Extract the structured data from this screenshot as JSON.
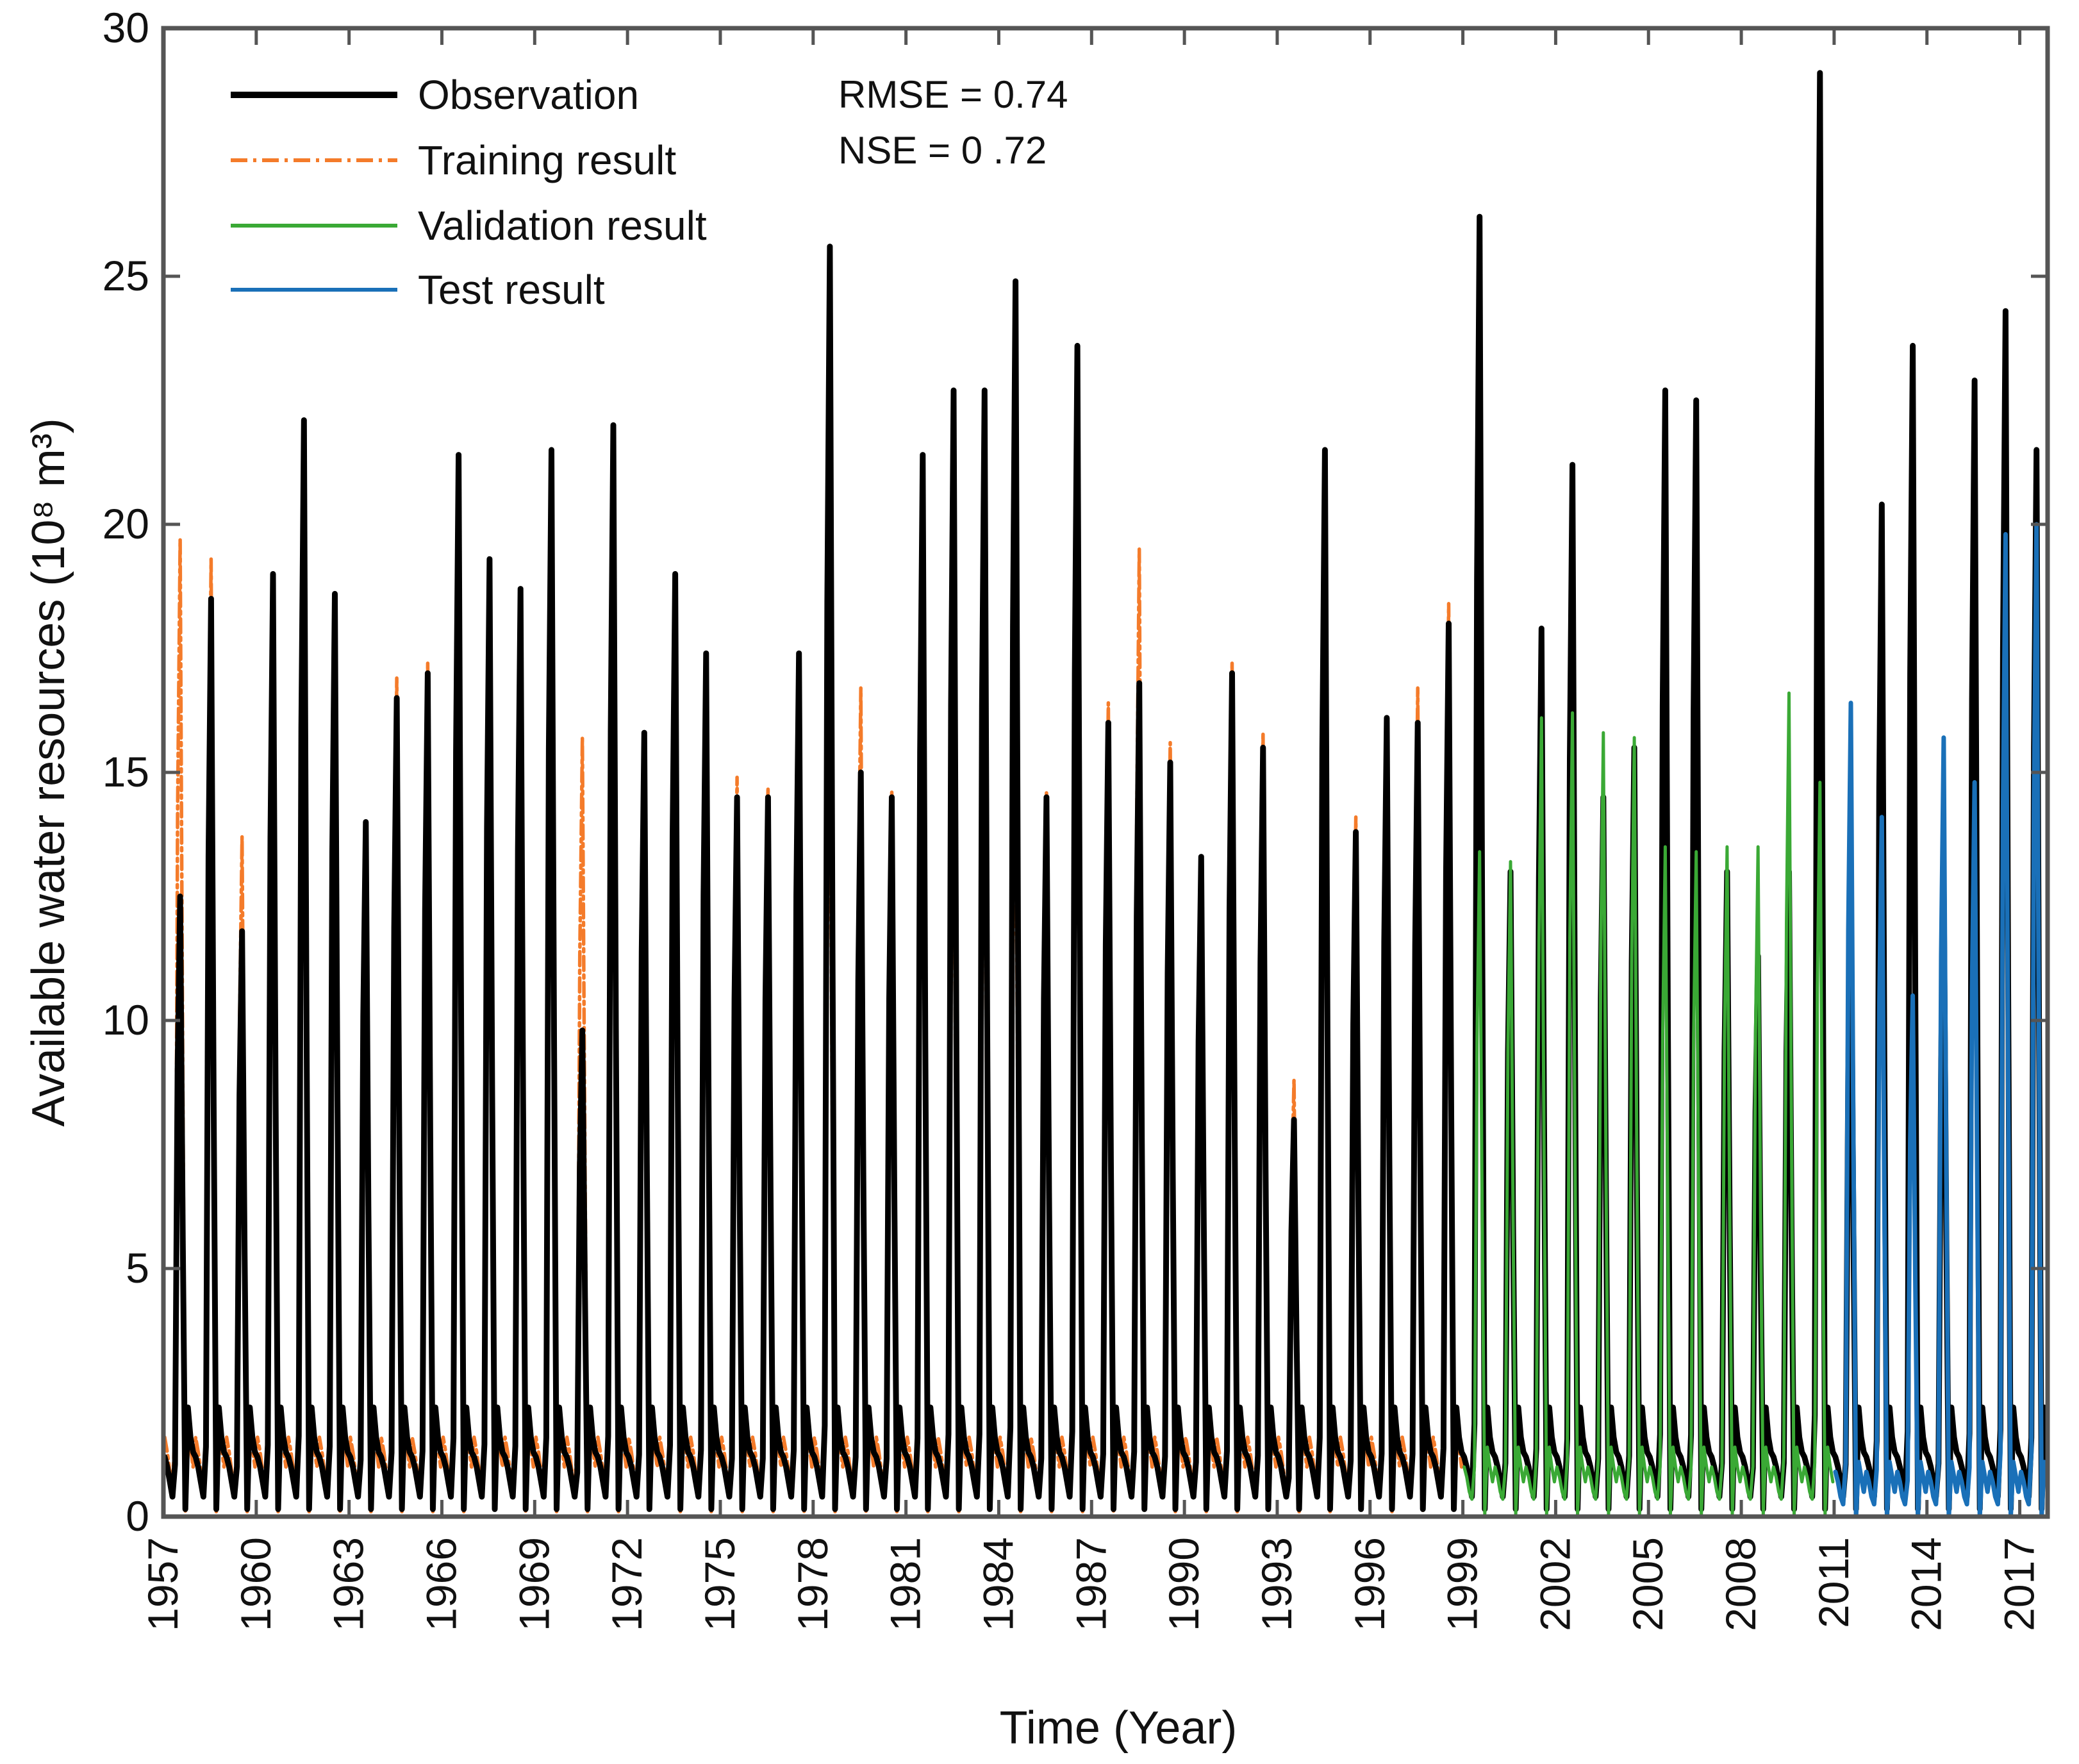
{
  "chart_data": {
    "type": "line",
    "title": "",
    "xlabel": "Time (Year)",
    "ylabel": "Available water resources (10⁸ m³)",
    "xlim": [
      1957,
      2017.9
    ],
    "ylim": [
      0,
      30
    ],
    "yticks": [
      0,
      5,
      10,
      15,
      20,
      25,
      30
    ],
    "xticks": [
      1957,
      1960,
      1963,
      1966,
      1969,
      1972,
      1975,
      1978,
      1981,
      1984,
      1987,
      1990,
      1993,
      1996,
      1999,
      2002,
      2005,
      2008,
      2011,
      2014,
      2017
    ],
    "grid": false,
    "legend_position": "top-left",
    "annotations": [
      "RMSE = 0.74",
      "NSE = 0 .72"
    ],
    "series": [
      {
        "name": "Observation",
        "color": "#000000",
        "style": "solid",
        "peak_years": [
          1957.5,
          1958.5,
          1959.5,
          1960.5,
          1961.5,
          1962.5,
          1963.5,
          1964.5,
          1965.5,
          1966.5,
          1967.5,
          1968.5,
          1969.5,
          1970.5,
          1971.5,
          1972.5,
          1973.5,
          1974.5,
          1975.5,
          1976.5,
          1977.5,
          1978.5,
          1979.5,
          1980.5,
          1981.5,
          1982.5,
          1983.5,
          1984.5,
          1985.5,
          1986.5,
          1987.5,
          1988.5,
          1989.5,
          1990.5,
          1991.5,
          1992.5,
          1993.5,
          1994.5,
          1995.5,
          1996.5,
          1997.5,
          1998.5,
          1999.5,
          2000.5,
          2001.5,
          2002.5,
          2003.5,
          2004.5,
          2005.5,
          2006.5,
          2007.5,
          2008.5,
          2009.5,
          2010.5,
          2011.5,
          2012.5,
          2013.5,
          2014.5,
          2015.5,
          2016.5,
          2017.5
        ],
        "peaks": [
          12.5,
          18.5,
          11.8,
          19.0,
          22.1,
          18.6,
          14.0,
          16.5,
          17.0,
          21.4,
          19.3,
          18.7,
          21.5,
          9.8,
          22.0,
          15.8,
          19.0,
          17.4,
          14.5,
          14.5,
          17.4,
          25.6,
          15.0,
          14.5,
          21.4,
          22.7,
          22.7,
          24.9,
          14.5,
          23.6,
          16.0,
          16.8,
          15.2,
          13.3,
          17.0,
          15.5,
          8.0,
          21.5,
          13.8,
          16.1,
          16.0,
          18.0,
          26.2,
          13.0,
          17.9,
          21.2,
          14.5,
          15.5,
          22.7,
          22.5,
          13.0,
          11.3,
          13.0,
          29.1,
          12.6,
          20.4,
          23.6,
          12.8,
          22.9,
          24.3,
          21.5
        ]
      },
      {
        "name": "Training result",
        "color": "#f47b2a",
        "style": "dash-dot",
        "peak_years": [
          1957.5,
          1958.5,
          1959.5,
          1960.5,
          1961.5,
          1962.5,
          1963.5,
          1964.5,
          1965.5,
          1966.5,
          1967.5,
          1968.5,
          1969.5,
          1970.5,
          1971.5,
          1972.5,
          1973.5,
          1974.5,
          1975.5,
          1976.5,
          1977.5,
          1978.5,
          1979.5,
          1980.5,
          1981.5,
          1982.5,
          1983.5,
          1984.5,
          1985.5,
          1986.5,
          1987.5,
          1988.5,
          1989.5,
          1990.5,
          1991.5,
          1992.5,
          1993.5,
          1994.5,
          1995.5,
          1996.5,
          1997.5,
          1998.5
        ],
        "peaks": [
          19.7,
          19.3,
          13.7,
          15.5,
          15.7,
          15.4,
          13.9,
          16.9,
          17.2,
          16.0,
          18.3,
          17.0,
          18.9,
          15.7,
          15.4,
          12.9,
          18.0,
          17.4,
          14.9,
          14.7,
          15.9,
          16.2,
          16.7,
          14.6,
          16.2,
          15.0,
          15.1,
          15.8,
          14.6,
          18.9,
          16.4,
          19.5,
          15.6,
          12.6,
          17.2,
          15.8,
          8.8,
          17.6,
          14.1,
          16.1,
          16.7,
          18.4
        ]
      },
      {
        "name": "Validation result",
        "color": "#3aa935",
        "style": "solid",
        "peak_years": [
          1999.5,
          2000.5,
          2001.5,
          2002.5,
          2003.5,
          2004.5,
          2005.5,
          2006.5,
          2007.5,
          2008.5,
          2009.5,
          2010.5
        ],
        "peaks": [
          13.4,
          13.2,
          16.1,
          16.2,
          15.8,
          15.7,
          13.5,
          13.4,
          13.5,
          13.5,
          16.6,
          14.8
        ]
      },
      {
        "name": "Test result",
        "color": "#1a70b8",
        "style": "solid",
        "peak_years": [
          2011.5,
          2012.5,
          2013.5,
          2014.5,
          2015.5,
          2016.5,
          2017.5
        ],
        "peaks": [
          16.4,
          14.1,
          10.5,
          15.7,
          14.8,
          19.8,
          20.0
        ]
      }
    ]
  }
}
